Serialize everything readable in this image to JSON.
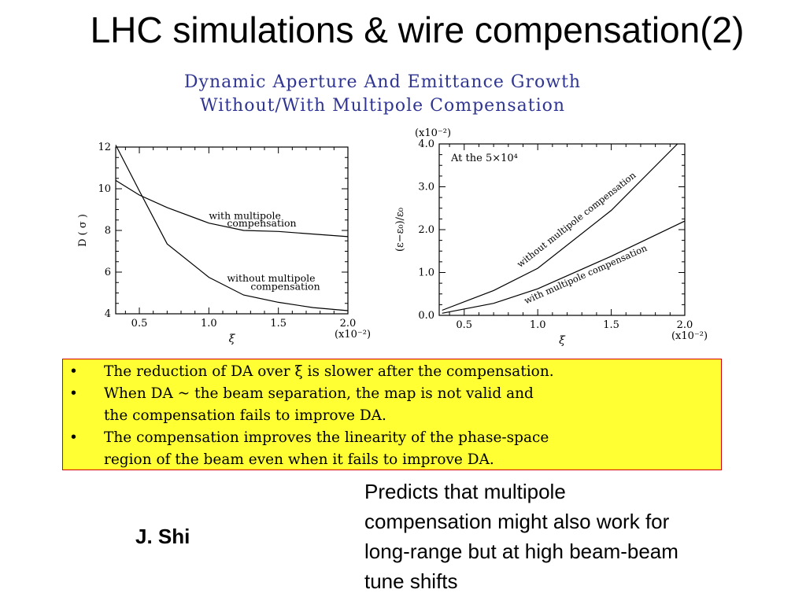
{
  "slide": {
    "title": "LHC simulations & wire compensation(2)",
    "author": "J. Shi",
    "note_lines": [
      "Predicts that multipole",
      "compensation might also work for",
      "long-range but at high beam-beam",
      "tune shifts"
    ]
  },
  "figure": {
    "title_lines": [
      "Dynamic Aperture And Emittance Growth",
      "Without/With Multipole Compensation"
    ]
  },
  "bullets": [
    {
      "bullet": "•",
      "lines": [
        "The reduction of DA over ξ is slower after the compensation."
      ]
    },
    {
      "bullet": "•",
      "lines": [
        "When DA ~ the beam separation, the map is not valid and",
        "the compensation fails to improve DA."
      ]
    },
    {
      "bullet": "•",
      "lines": [
        "The compensation improves the linearity of the phase-space",
        "region of the beam even when it fails to improve DA."
      ]
    }
  ],
  "colors": {
    "box_background": "#ffff33",
    "box_border": "#d40000",
    "figure_title": "#2f3591"
  },
  "chart_data": [
    {
      "type": "line",
      "xlabel": "ξ",
      "ylabel": "D ( σ )",
      "xlim": [
        0.33,
        2.0
      ],
      "ylim": [
        4,
        12
      ],
      "x_ticks": [
        "0.5",
        "1.0",
        "1.5",
        "2.0"
      ],
      "x_tick_values": [
        0.5,
        1.0,
        1.5,
        2.0
      ],
      "y_ticks": [
        "4",
        "6",
        "8",
        "10",
        "12"
      ],
      "y_tick_values": [
        4,
        6,
        8,
        10,
        12
      ],
      "x_multiplier": "(x10⁻²)",
      "series": [
        {
          "name": "with multipole compensation",
          "x": [
            0.33,
            0.5,
            0.7,
            1.0,
            1.25,
            1.5,
            2.0
          ],
          "y": [
            10.4,
            9.7,
            9.1,
            8.35,
            8.0,
            7.95,
            7.7
          ]
        },
        {
          "name": "without multipole compensation",
          "x": [
            0.33,
            0.5,
            0.7,
            1.0,
            1.25,
            1.5,
            1.75,
            2.0
          ],
          "y": [
            12.1,
            9.9,
            7.35,
            5.75,
            4.9,
            4.55,
            4.3,
            4.15
          ]
        }
      ],
      "annotations": [
        {
          "text_lines": [
            "with multipole",
            "compensation"
          ],
          "series": 0
        },
        {
          "text_lines": [
            "without multipole",
            "compensation"
          ],
          "series": 1
        }
      ]
    },
    {
      "type": "line",
      "xlabel": "ξ",
      "ylabel": "(ε−ε₀)/ε₀",
      "xlim": [
        0.33,
        2.0
      ],
      "ylim": [
        0.0,
        4.0
      ],
      "x_ticks": [
        "0.5",
        "1.0",
        "1.5",
        "2.0"
      ],
      "x_tick_values": [
        0.5,
        1.0,
        1.5,
        2.0
      ],
      "y_ticks": [
        "0.0",
        "1.0",
        "2.0",
        "3.0",
        "4.0"
      ],
      "y_tick_values": [
        0.0,
        1.0,
        2.0,
        3.0,
        4.0
      ],
      "x_multiplier": "(x10⁻²)",
      "y_multiplier": "(x10⁻²)",
      "inset_text": "At the 5×10⁴",
      "series": [
        {
          "name": "without multipole compensation",
          "x": [
            0.35,
            0.7,
            1.0,
            1.5,
            1.95
          ],
          "y": [
            0.12,
            0.58,
            1.1,
            2.45,
            4.0
          ]
        },
        {
          "name": "with multipole compensation",
          "x": [
            0.35,
            0.7,
            1.0,
            1.5,
            2.0
          ],
          "y": [
            0.05,
            0.28,
            0.62,
            1.38,
            2.2
          ]
        }
      ],
      "annotations": [
        {
          "text": "without multipole compensation",
          "series": 0
        },
        {
          "text": "with multipole compensation",
          "series": 1
        }
      ]
    }
  ]
}
